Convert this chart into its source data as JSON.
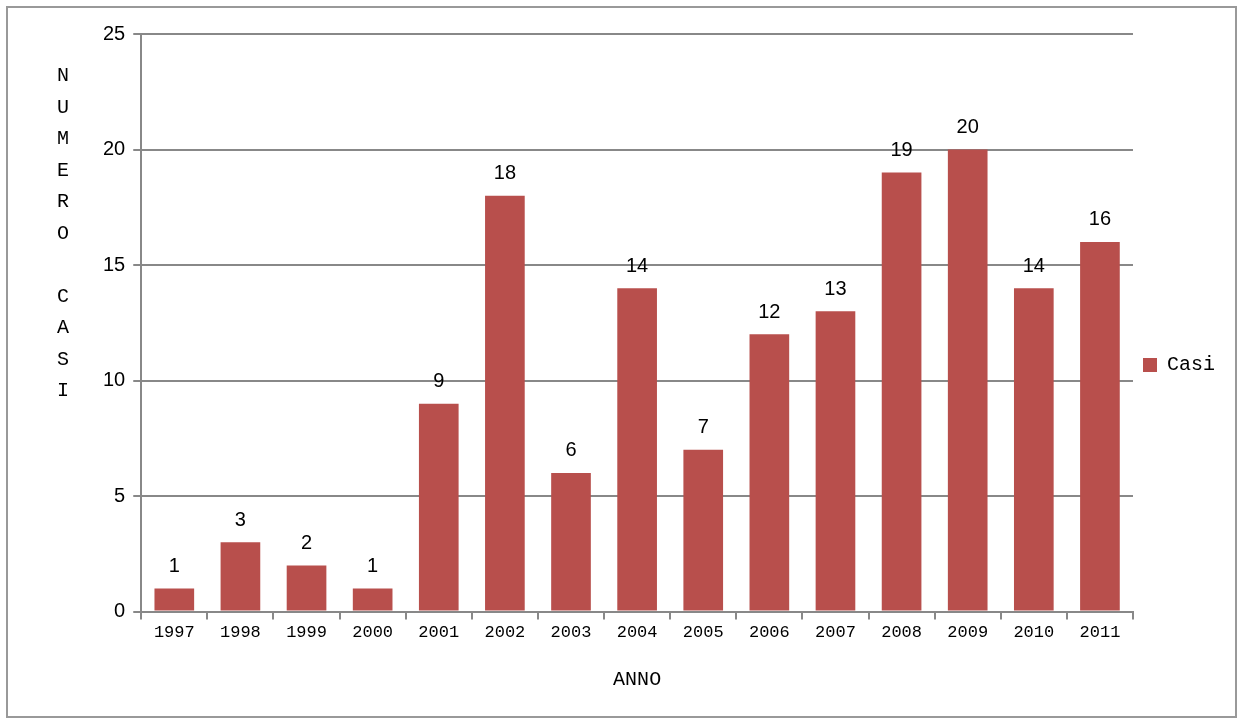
{
  "chart_data": {
    "type": "bar",
    "xlabel": "ANNO",
    "ylabel": "NUMERO CASI",
    "categories": [
      "1997",
      "1998",
      "1999",
      "2000",
      "2001",
      "2002",
      "2003",
      "2004",
      "2005",
      "2006",
      "2007",
      "2008",
      "2009",
      "2010",
      "2011"
    ],
    "series": [
      {
        "name": "Casi",
        "color": "#b84f4c",
        "values": [
          1,
          3,
          2,
          1,
          9,
          18,
          6,
          14,
          7,
          12,
          13,
          19,
          20,
          14,
          16
        ]
      }
    ],
    "ylim": [
      0,
      25
    ],
    "yticks": [
      0,
      5,
      10,
      15,
      20,
      25
    ],
    "grid": "y",
    "legend": "right",
    "data_labels": true
  }
}
